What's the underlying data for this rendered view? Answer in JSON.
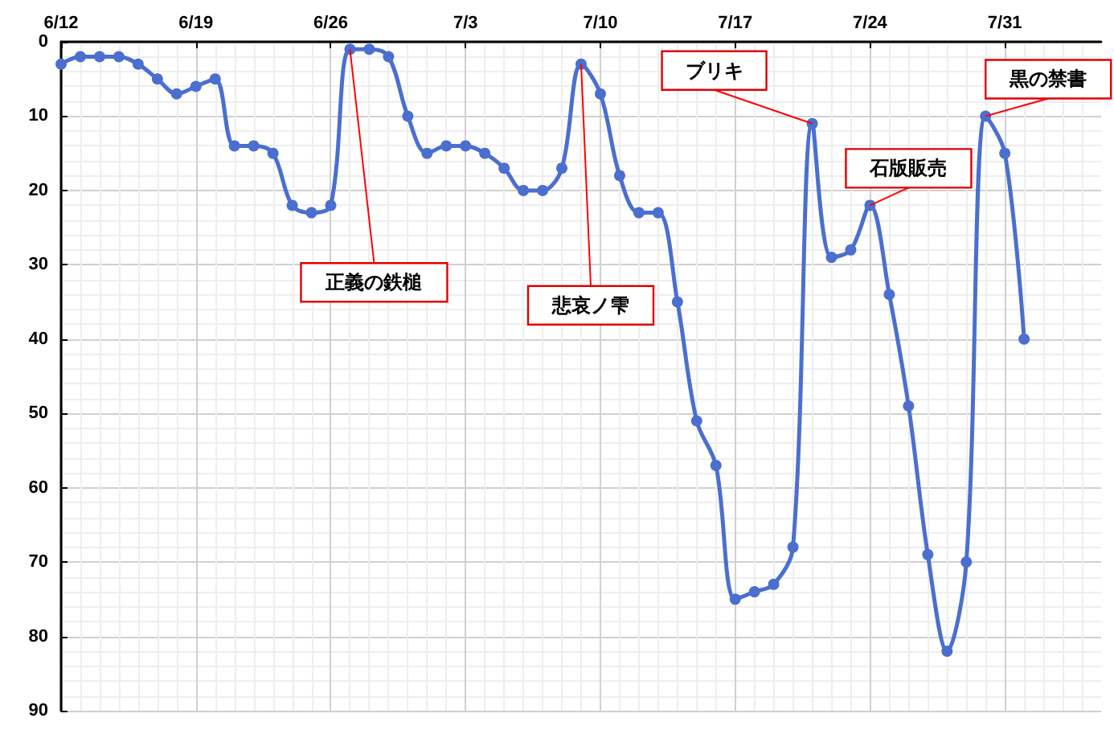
{
  "chart_data": {
    "type": "line",
    "x": [
      "--06-12",
      "--06-13",
      "--06-14",
      "--06-15",
      "--06-16",
      "--06-17",
      "--06-18",
      "--06-19",
      "--06-20",
      "--06-21",
      "--06-22",
      "--06-23",
      "--06-24",
      "--06-25",
      "--06-26",
      "--06-27",
      "--06-28",
      "--06-29",
      "--06-30",
      "--07-01",
      "--07-02",
      "--07-03",
      "--07-04",
      "--07-05",
      "--07-06",
      "--07-07",
      "--07-08",
      "--07-09",
      "--07-10",
      "--07-11",
      "--07-12",
      "--07-13",
      "--07-14",
      "--07-15",
      "--07-16",
      "--07-17",
      "--07-18",
      "--07-19",
      "--07-20",
      "--07-21",
      "--07-22",
      "--07-23",
      "--07-24",
      "--07-25",
      "--07-26",
      "--07-27",
      "--07-28",
      "--07-29",
      "--07-30",
      "--07-31",
      "--08-01"
    ],
    "series": [
      {
        "color": "#4a6fcf",
        "values": [
          3,
          2,
          2,
          2,
          3,
          5,
          7,
          6,
          5,
          14,
          14,
          15,
          22,
          23,
          22,
          1,
          1,
          2,
          10,
          15,
          14,
          14,
          15,
          17,
          20,
          20,
          17,
          3,
          7,
          18,
          23,
          23,
          35,
          51,
          57,
          75,
          74,
          73,
          68,
          11,
          29,
          28,
          22,
          34,
          49,
          69,
          82,
          70,
          10,
          15,
          40
        ]
      }
    ],
    "xlim": [
      "--06-12",
      "--08-05"
    ],
    "xticks": [
      {
        "value": "--06-12",
        "label": "6/12"
      },
      {
        "value": "--06-19",
        "label": "6/19"
      },
      {
        "value": "--06-26",
        "label": "6/26"
      },
      {
        "value": "--07-03",
        "label": "7/3"
      },
      {
        "value": "--07-10",
        "label": "7/10"
      },
      {
        "value": "--07-17",
        "label": "7/17"
      },
      {
        "value": "--07-24",
        "label": "7/24"
      },
      {
        "value": "--07-31",
        "label": "7/31"
      }
    ],
    "ylim": [
      90,
      0
    ],
    "yticks": [
      0,
      10,
      20,
      30,
      40,
      50,
      60,
      70,
      80,
      90
    ],
    "grid": true,
    "marker": "circle",
    "line_style": "solid",
    "annotations": [
      {
        "text": "正義の鉄槌",
        "x": "--06-27",
        "y": 1
      },
      {
        "text": "悲哀ノ雫",
        "x": "--07-09",
        "y": 3
      },
      {
        "text": "ブリキ",
        "x": "--07-21",
        "y": 11
      },
      {
        "text": "石版販売",
        "x": "--07-24",
        "y": 22
      },
      {
        "text": "黒の禁書",
        "x": "--07-30",
        "y": 10
      }
    ]
  }
}
